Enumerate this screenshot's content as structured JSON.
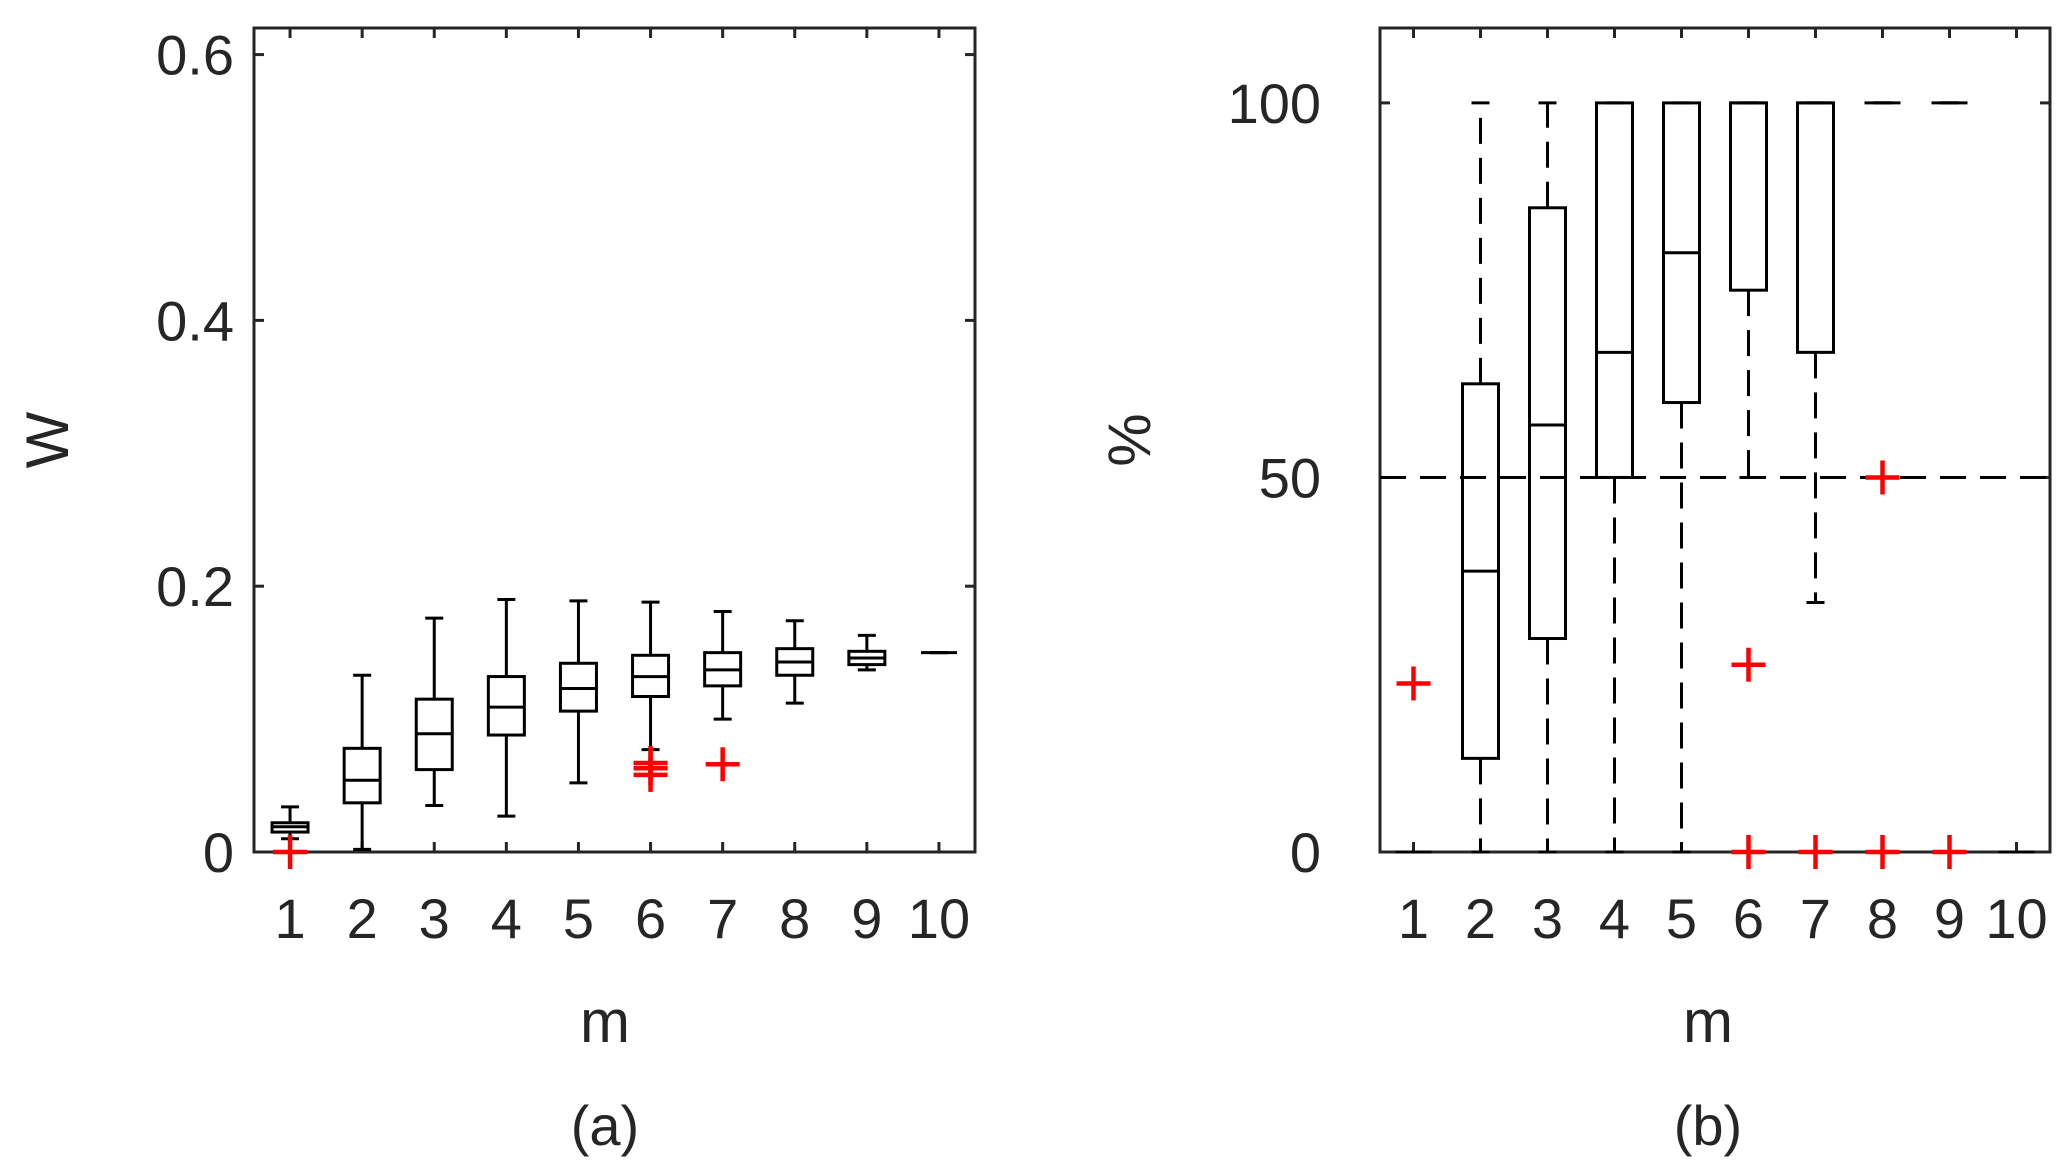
{
  "chart_data": [
    {
      "type": "box",
      "caption": "(a)",
      "xlabel": "m",
      "ylabel": "W",
      "ylim": [
        0,
        0.62
      ],
      "yticks": [
        0,
        0.2,
        0.4,
        0.6
      ],
      "ytick_labels": [
        "0",
        "0.2",
        "0.4",
        "0.6"
      ],
      "categories": [
        "1",
        "2",
        "3",
        "4",
        "5",
        "6",
        "7",
        "8",
        "9",
        "10"
      ],
      "grid": false,
      "whisker_style": "solid",
      "boxes": [
        {
          "x": "1",
          "whisker_low": 0.01,
          "q1": 0.015,
          "median": 0.019,
          "q3": 0.022,
          "whisker_high": 0.034,
          "outliers": [
            0.0
          ]
        },
        {
          "x": "2",
          "whisker_low": 0.002,
          "q1": 0.037,
          "median": 0.054,
          "q3": 0.078,
          "whisker_high": 0.133,
          "outliers": []
        },
        {
          "x": "3",
          "whisker_low": 0.035,
          "q1": 0.062,
          "median": 0.089,
          "q3": 0.115,
          "whisker_high": 0.176,
          "outliers": []
        },
        {
          "x": "4",
          "whisker_low": 0.027,
          "q1": 0.088,
          "median": 0.109,
          "q3": 0.132,
          "whisker_high": 0.19,
          "outliers": []
        },
        {
          "x": "5",
          "whisker_low": 0.052,
          "q1": 0.106,
          "median": 0.123,
          "q3": 0.142,
          "whisker_high": 0.189,
          "outliers": []
        },
        {
          "x": "6",
          "whisker_low": 0.077,
          "q1": 0.117,
          "median": 0.132,
          "q3": 0.148,
          "whisker_high": 0.188,
          "outliers": [
            0.067,
            0.063,
            0.058
          ]
        },
        {
          "x": "7",
          "whisker_low": 0.1,
          "q1": 0.125,
          "median": 0.137,
          "q3": 0.15,
          "whisker_high": 0.181,
          "outliers": [
            0.066
          ]
        },
        {
          "x": "8",
          "whisker_low": 0.112,
          "q1": 0.133,
          "median": 0.143,
          "q3": 0.153,
          "whisker_high": 0.174,
          "outliers": []
        },
        {
          "x": "9",
          "whisker_low": 0.137,
          "q1": 0.141,
          "median": 0.146,
          "q3": 0.151,
          "whisker_high": 0.163,
          "outliers": []
        },
        {
          "x": "10",
          "whisker_low": 0.15,
          "q1": 0.15,
          "median": 0.15,
          "q3": 0.15,
          "whisker_high": 0.15,
          "outliers": []
        }
      ]
    },
    {
      "type": "box",
      "caption": "(b)",
      "xlabel": "m",
      "ylabel": "%",
      "ylim": [
        0,
        110
      ],
      "yticks": [
        0,
        50,
        100
      ],
      "ytick_labels": [
        "0",
        "50",
        "100"
      ],
      "categories": [
        "1",
        "2",
        "3",
        "4",
        "5",
        "6",
        "7",
        "8",
        "9",
        "10"
      ],
      "grid": false,
      "whisker_style": "dashed",
      "boxes": [
        {
          "x": "1",
          "whisker_low": 0,
          "q1": 0,
          "median": 0,
          "q3": 0,
          "whisker_high": 0,
          "outliers": [
            22.5
          ]
        },
        {
          "x": "2",
          "whisker_low": 0,
          "q1": 12.5,
          "median": 37.5,
          "q3": 62.5,
          "whisker_high": 100,
          "outliers": []
        },
        {
          "x": "3",
          "whisker_low": 0,
          "q1": 28.5,
          "median": 57.0,
          "q3": 86.0,
          "whisker_high": 100,
          "outliers": []
        },
        {
          "x": "4",
          "whisker_low": 0,
          "q1": 50,
          "median": 66.7,
          "q3": 100,
          "whisker_high": 100,
          "outliers": []
        },
        {
          "x": "5",
          "whisker_low": 0,
          "q1": 60,
          "median": 80,
          "q3": 100,
          "whisker_high": 100,
          "outliers": []
        },
        {
          "x": "6",
          "whisker_low": 50,
          "q1": 75,
          "median": 100,
          "q3": 100,
          "whisker_high": 100,
          "outliers": [
            25,
            0
          ]
        },
        {
          "x": "7",
          "whisker_low": 33.3,
          "q1": 66.7,
          "median": 100,
          "q3": 100,
          "whisker_high": 100,
          "outliers": [
            0
          ]
        },
        {
          "x": "8",
          "whisker_low": 100,
          "q1": 100,
          "median": 100,
          "q3": 100,
          "whisker_high": 100,
          "outliers": [
            50,
            0
          ]
        },
        {
          "x": "9",
          "whisker_low": 100,
          "q1": 100,
          "median": 100,
          "q3": 100,
          "whisker_high": 100,
          "outliers": [
            0
          ]
        },
        {
          "x": "10",
          "whisker_low": 0,
          "q1": 0,
          "median": 0,
          "q3": 0,
          "whisker_high": 0,
          "outliers": []
        }
      ],
      "reference_lines": [
        50
      ]
    }
  ],
  "colors": {
    "axis": "#262626",
    "box": "#000000",
    "outlier": "#ff0000",
    "background": "#ffffff"
  }
}
